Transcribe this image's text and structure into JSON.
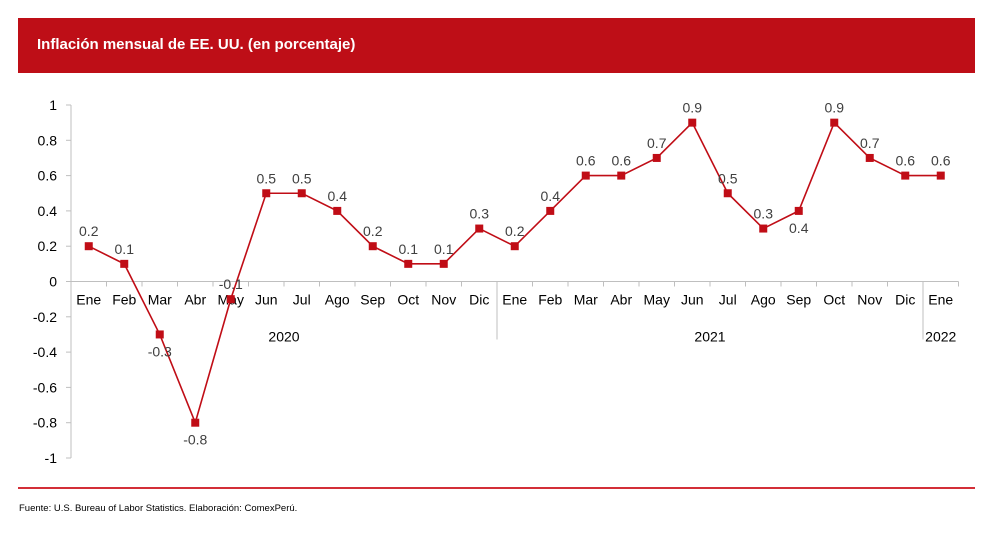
{
  "header": {
    "title": "Inflación mensual de EE. UU. (en porcentaje)"
  },
  "footer": {
    "source": "Fuente: U.S. Bureau of Labor Statistics. Elaboración: ComexPerú."
  },
  "colors": {
    "banner": "#BE0E17",
    "series": "#C00D16",
    "rule": "#D32F38",
    "axis": "#BFBFBF",
    "label": "#404040"
  },
  "chart_data": {
    "type": "line",
    "title": "Inflación mensual de EE. UU. (en porcentaje)",
    "xlabel": "",
    "ylabel": "",
    "ylim": [
      -1,
      1
    ],
    "yticks": [
      1,
      0.8,
      0.6,
      0.4,
      0.2,
      0,
      -0.2,
      -0.4,
      -0.6,
      -0.8,
      -1
    ],
    "ytick_labels": [
      "1",
      "0.8",
      "0.6",
      "0.4",
      "0.2",
      "0",
      "-0.2",
      "-0.4",
      "-0.6",
      "-0.8",
      "-1"
    ],
    "grid": false,
    "legend": "none",
    "categories": [
      "Ene",
      "Feb",
      "Mar",
      "Abr",
      "May",
      "Jun",
      "Jul",
      "Ago",
      "Sep",
      "Oct",
      "Nov",
      "Dic",
      "Ene",
      "Feb",
      "Mar",
      "Abr",
      "May",
      "Jun",
      "Jul",
      "Ago",
      "Sep",
      "Oct",
      "Nov",
      "Dic",
      "Ene"
    ],
    "groups": [
      {
        "label": "2020",
        "start": 0,
        "count": 12
      },
      {
        "label": "2021",
        "start": 12,
        "count": 12
      },
      {
        "label": "2022",
        "start": 24,
        "count": 1
      }
    ],
    "series": [
      {
        "name": "Inflación mensual",
        "values": [
          0.2,
          0.1,
          -0.3,
          -0.8,
          -0.1,
          0.5,
          0.5,
          0.4,
          0.2,
          0.1,
          0.1,
          0.3,
          0.2,
          0.4,
          0.6,
          0.6,
          0.7,
          0.9,
          0.5,
          0.3,
          0.4,
          0.9,
          0.7,
          0.6,
          0.6
        ],
        "data_labels": [
          "0.2",
          "0.1",
          "-0.3",
          "-0.8",
          "-0.1",
          "0.5",
          "0.5",
          "0.4",
          "0.2",
          "0.1",
          "0.1",
          "0.3",
          "0.2",
          "0.4",
          "0.6",
          "0.6",
          "0.7",
          "0.9",
          "0.5",
          "0.3",
          "0.4",
          "0.9",
          "0.7",
          "0.6",
          "0.6"
        ],
        "label_positions": [
          "above",
          "above",
          "below",
          "below",
          "above",
          "above",
          "above",
          "above",
          "above",
          "above",
          "above",
          "above",
          "above",
          "above",
          "above",
          "above",
          "above",
          "above",
          "above",
          "above",
          "below",
          "above",
          "above",
          "above",
          "above"
        ]
      }
    ]
  }
}
